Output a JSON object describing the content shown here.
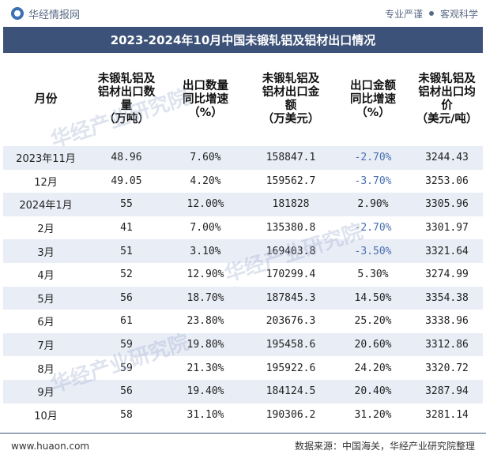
{
  "brand": {
    "name": "华经情报网",
    "tagline_left": "专业严谨",
    "tagline_right": "客观科学"
  },
  "title": "2023-2024年10月中国未锻轧铝及铝材出口情况",
  "chart_data": {
    "type": "table",
    "columns": [
      "月份",
      "未锻轧铝及铝材出口数量（万吨）",
      "出口数量同比增速（%）",
      "未锻轧铝及铝材出口金额（万美元）",
      "出口金额同比增速（%）",
      "未锻轧铝及铝材出口均价（美元/吨）"
    ],
    "header_lines": [
      [
        "月份"
      ],
      [
        "未锻轧铝及",
        "铝材出口数",
        "量",
        "（万吨）"
      ],
      [
        "出口数量",
        "同比增速",
        "（%）"
      ],
      [
        "未锻轧铝及",
        "铝材出口金",
        "额",
        "（万美元）"
      ],
      [
        "出口金额",
        "同比增速",
        "（%）"
      ],
      [
        "未锻轧铝及",
        "铝材出口均",
        "价",
        "（美元/吨）"
      ]
    ],
    "rows": [
      [
        "2023年11月",
        "48.96",
        "7.60%",
        "158847.1",
        "-2.70%",
        "3244.43"
      ],
      [
        "12月",
        "49.05",
        "4.20%",
        "159562.7",
        "-3.70%",
        "3253.06"
      ],
      [
        "2024年1月",
        "55",
        "12.00%",
        "181828",
        "2.90%",
        "3305.96"
      ],
      [
        "2月",
        "41",
        "7.00%",
        "135380.8",
        "-2.70%",
        "3301.97"
      ],
      [
        "3月",
        "51",
        "3.10%",
        "169403.8",
        "-3.50%",
        "3321.64"
      ],
      [
        "4月",
        "52",
        "12.90%",
        "170299.4",
        "5.30%",
        "3274.99"
      ],
      [
        "5月",
        "56",
        "18.70%",
        "187845.3",
        "14.50%",
        "3354.38"
      ],
      [
        "6月",
        "61",
        "23.80%",
        "203676.3",
        "25.20%",
        "3338.96"
      ],
      [
        "7月",
        "59",
        "19.80%",
        "195458.6",
        "20.60%",
        "3312.86"
      ],
      [
        "8月",
        "59",
        "21.30%",
        "195922.6",
        "24.20%",
        "3320.72"
      ],
      [
        "9月",
        "56",
        "19.40%",
        "184124.5",
        "20.40%",
        "3287.94"
      ],
      [
        "10月",
        "58",
        "31.10%",
        "190306.2",
        "31.20%",
        "3281.14"
      ]
    ]
  },
  "watermarks": [
    "华经产业研究院",
    "华经产业研究院",
    "华经产业研究院"
  ],
  "footer": {
    "url": "www.huaon.com",
    "source": "数据来源：中国海关，华经产业研究院整理"
  },
  "colors": {
    "title_bg": "#3d5278",
    "alt_row": "#e9edf6",
    "negative": "#4a6fb0"
  }
}
